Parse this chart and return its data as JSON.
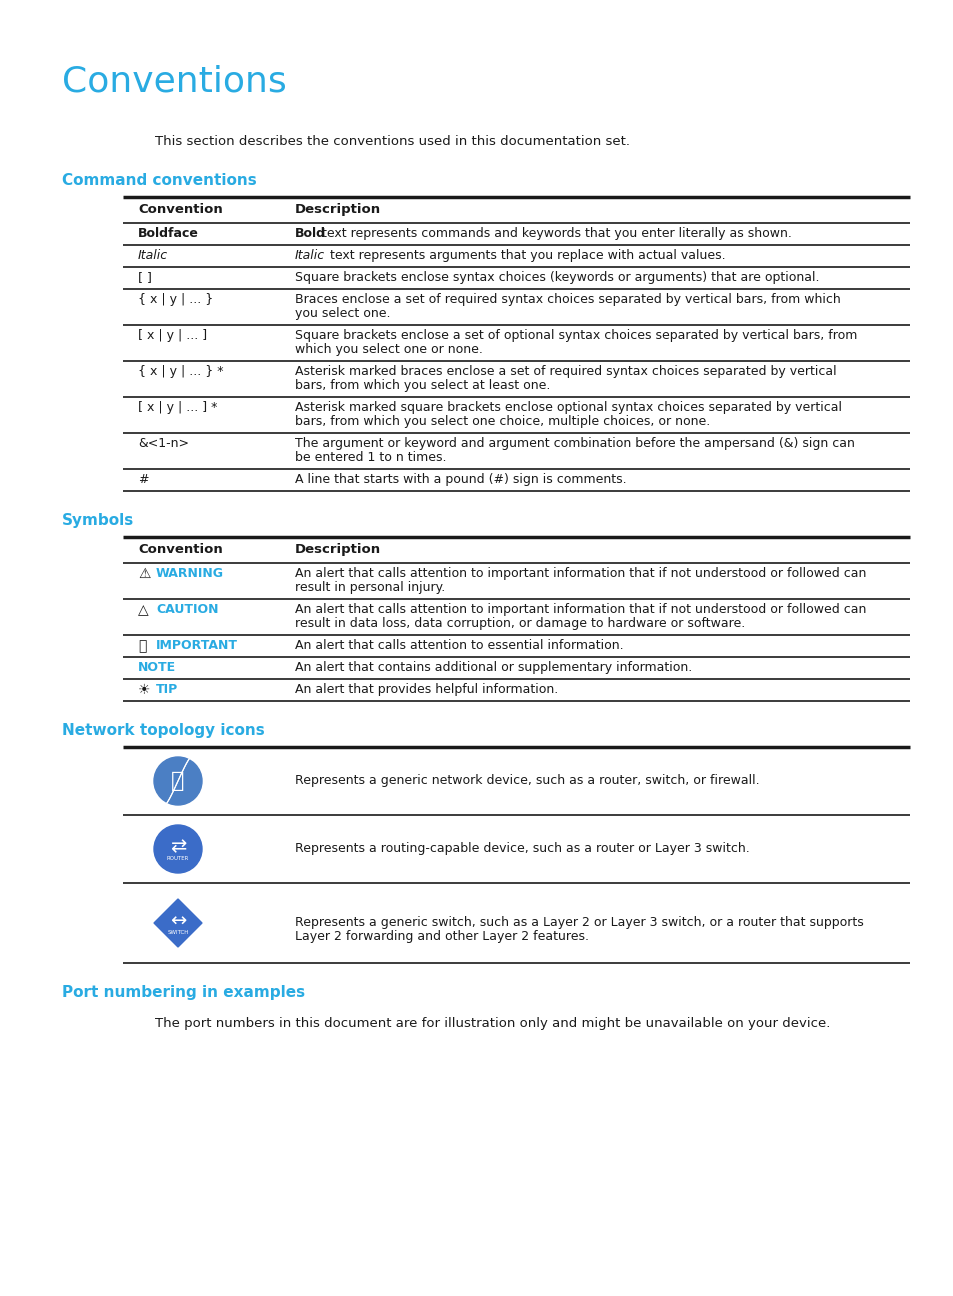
{
  "title": "Conventions",
  "title_color": "#29ABE2",
  "bg_color": "#FFFFFF",
  "section_color": "#29ABE2",
  "text_color": "#1a1a1a",
  "intro": "This section describes the conventions used in this documentation set.",
  "cmd_section": "Command conventions",
  "sym_section": "Symbols",
  "net_section": "Network topology icons",
  "port_section": "Port numbering in examples",
  "port_text": "The port numbers in this document are for illustration only and might be unavailable on your device.",
  "cmd_rows": [
    {
      "conv": "Boldface",
      "bold_conv": true,
      "italic_conv": false,
      "desc_pre": "Bold",
      "desc_pre_bold": true,
      "desc_pre_italic": false,
      "desc_rest": " text represents commands and keywords that you enter literally as shown.",
      "multiline": false
    },
    {
      "conv": "Italic",
      "bold_conv": false,
      "italic_conv": true,
      "desc_pre": "Italic",
      "desc_pre_bold": false,
      "desc_pre_italic": true,
      "desc_rest": " text represents arguments that you replace with actual values.",
      "multiline": false
    },
    {
      "conv": "[ ]",
      "bold_conv": false,
      "italic_conv": false,
      "desc_pre": "",
      "desc_pre_bold": false,
      "desc_pre_italic": false,
      "desc_rest": "Square brackets enclose syntax choices (keywords or arguments) that are optional.",
      "multiline": false
    },
    {
      "conv": "{ x | y | ... }",
      "bold_conv": false,
      "italic_conv": false,
      "desc_pre": "",
      "desc_pre_bold": false,
      "desc_pre_italic": false,
      "desc_rest": "Braces enclose a set of required syntax choices separated by vertical bars, from which\nyou select one.",
      "multiline": true
    },
    {
      "conv": "[ x | y | ... ]",
      "bold_conv": false,
      "italic_conv": false,
      "desc_pre": "",
      "desc_pre_bold": false,
      "desc_pre_italic": false,
      "desc_rest": "Square brackets enclose a set of optional syntax choices separated by vertical bars, from\nwhich you select one or none.",
      "multiline": true
    },
    {
      "conv": "{ x | y | ... } *",
      "bold_conv": false,
      "italic_conv": false,
      "desc_pre": "",
      "desc_pre_bold": false,
      "desc_pre_italic": false,
      "desc_rest": "Asterisk marked braces enclose a set of required syntax choices separated by vertical\nbars, from which you select at least one.",
      "multiline": true
    },
    {
      "conv": "[ x | y | ... ] *",
      "bold_conv": false,
      "italic_conv": false,
      "desc_pre": "",
      "desc_pre_bold": false,
      "desc_pre_italic": false,
      "desc_rest": "Asterisk marked square brackets enclose optional syntax choices separated by vertical\nbars, from which you select one choice, multiple choices, or none.",
      "multiline": true
    },
    {
      "conv": "&<1-n>",
      "bold_conv": false,
      "italic_conv": false,
      "desc_pre": "",
      "desc_pre_bold": false,
      "desc_pre_italic": false,
      "desc_rest": "The argument or keyword and argument combination before the ampersand (&) sign can\nbe entered 1 to n times.",
      "multiline": true
    },
    {
      "conv": "#",
      "bold_conv": false,
      "italic_conv": false,
      "desc_pre": "",
      "desc_pre_bold": false,
      "desc_pre_italic": false,
      "desc_rest": "A line that starts with a pound (#) sign is comments.",
      "multiline": false
    }
  ],
  "sym_rows": [
    {
      "sym_char": "⚠",
      "sym_word": "WARNING",
      "desc": "An alert that calls attention to important information that if not understood or followed can\nresult in personal injury.",
      "multiline": true
    },
    {
      "sym_char": "△",
      "sym_word": "CAUTION",
      "desc": "An alert that calls attention to important information that if not understood or followed can\nresult in data loss, data corruption, or damage to hardware or software.",
      "multiline": true
    },
    {
      "sym_char": "ⓘ",
      "sym_word": "IMPORTANT",
      "desc": "An alert that calls attention to essential information.",
      "multiline": false
    },
    {
      "sym_char": "",
      "sym_word": "NOTE",
      "desc": "An alert that contains additional or supplementary information.",
      "multiline": false
    },
    {
      "sym_char": "☀",
      "sym_word": "TIP",
      "desc": "An alert that provides helpful information.",
      "multiline": false
    }
  ],
  "net_rows": [
    {
      "desc": "Represents a generic network device, such as a router, switch, or firewall.",
      "multiline": false
    },
    {
      "desc": "Represents a routing-capable device, such as a router or Layer 3 switch.",
      "multiline": false
    },
    {
      "desc": "Represents a generic switch, such as a Layer 2 or Layer 3 switch, or a router that supports\nLayer 2 forwarding and other Layer 2 features.",
      "multiline": true
    }
  ]
}
